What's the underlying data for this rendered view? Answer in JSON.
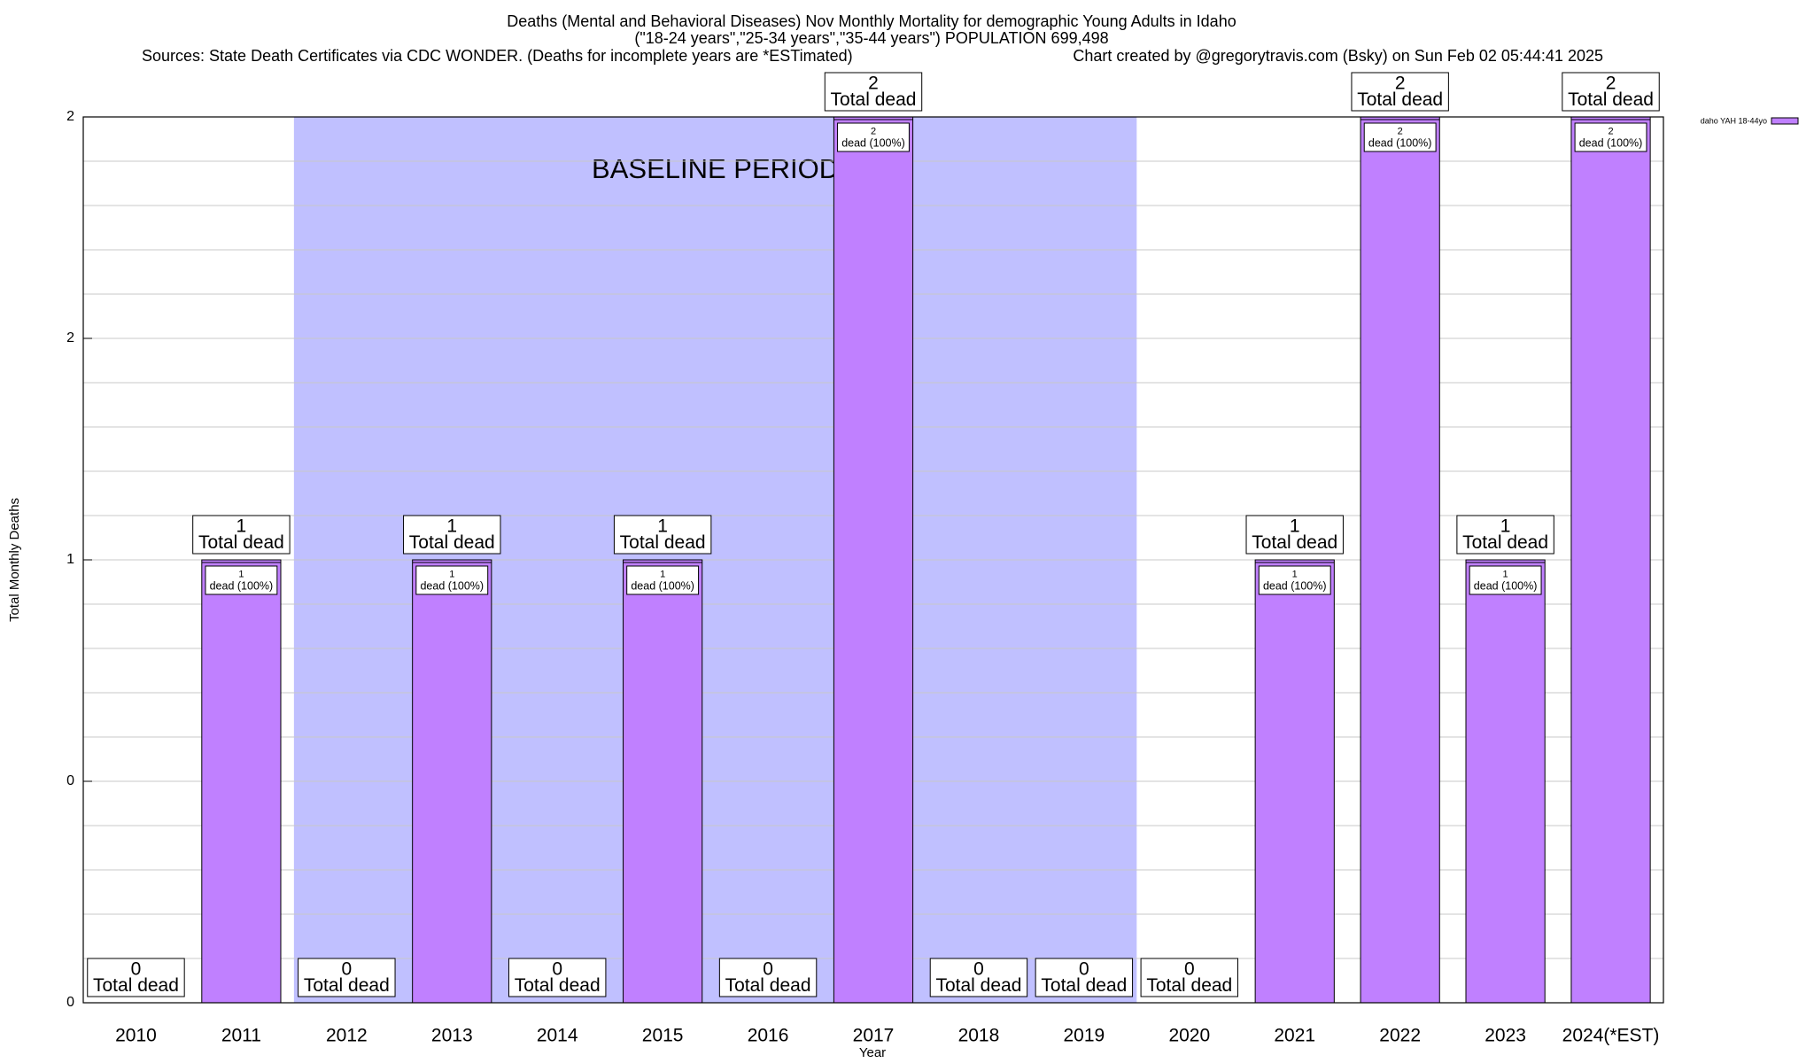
{
  "chart_data": {
    "type": "bar",
    "title": "Deaths (Mental and Behavioral Diseases) Nov Monthly Mortality for demographic Young Adults in Idaho",
    "subtitle": "(\"18-24 years\",\"25-34 years\",\"35-44 years\") POPULATION 699,498",
    "source": "Sources: State Death Certificates via CDC WONDER. (Deaths for incomplete years are *ESTimated)",
    "credit": "Chart created by @gregorytravis.com (Bsky) on Sun Feb 02 05:44:41 2025",
    "x_label": "Year",
    "y_label": "Total Monthly Deaths",
    "categories": [
      "2010",
      "2011",
      "2012",
      "2013",
      "2014",
      "2015",
      "2016",
      "2017",
      "2018",
      "2019",
      "2020",
      "2021",
      "2022",
      "2023",
      "2024(*EST)"
    ],
    "series": [
      {
        "name": "daho YAH 18-44yo",
        "color": "#c080ff",
        "values": [
          0,
          1,
          0,
          1,
          0,
          1,
          0,
          2,
          0,
          0,
          0,
          1,
          2,
          1,
          2
        ],
        "share_labels": [
          null,
          "dead (100%)",
          null,
          "dead (100%)",
          null,
          "dead (100%)",
          null,
          "dead (100%)",
          null,
          null,
          null,
          "dead (100%)",
          "dead (100%)",
          "dead (100%)",
          "dead (100%)"
        ]
      }
    ],
    "total_label": "Total dead",
    "ylim": [
      0,
      2
    ],
    "yticks": [
      0,
      {
        "value": 0.5,
        "label": "0"
      },
      1,
      {
        "value": 1.5,
        "label": "2"
      },
      2
    ],
    "minor_yticks": [
      0.1,
      0.2,
      0.3,
      0.4,
      0.6,
      0.7,
      0.8,
      0.9,
      1.1,
      1.2,
      1.3,
      1.4,
      1.6,
      1.7,
      1.8,
      1.9
    ],
    "grid": true,
    "legend": "top-right",
    "baseline": {
      "label": "BASELINE PERIOD",
      "start": "2012",
      "end": "2019",
      "color": "#c0c0ff"
    }
  }
}
